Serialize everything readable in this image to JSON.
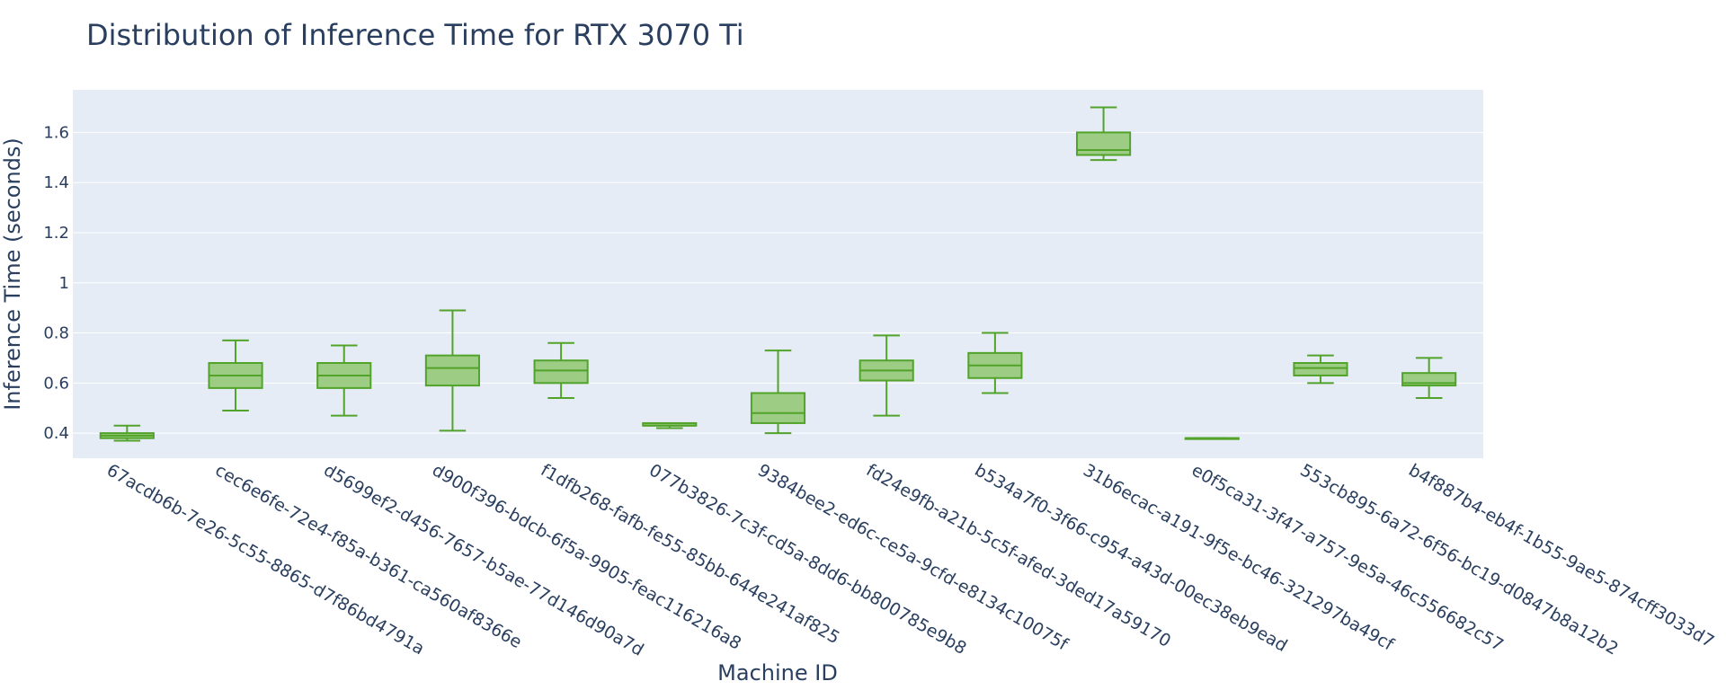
{
  "chart_data": {
    "type": "box",
    "title": "Distribution of Inference Time for RTX 3070 Ti",
    "xlabel": "Machine ID",
    "ylabel": "Inference Time (seconds)",
    "ylim": [
      0.3,
      1.77
    ],
    "yticks": [
      0.4,
      0.6,
      0.8,
      1,
      1.2,
      1.4,
      1.6
    ],
    "grid": true,
    "colors": {
      "plot_bg": "#e5ecf6",
      "grid": "#ffffff",
      "box_fill": "#9dcc85",
      "box_line": "#52a32a",
      "text": "#2a3f5f"
    },
    "categories": [
      "67acdb6b-7e26-5c55-8865-d7f86bd4791a",
      "cec6e6fe-72e4-f85a-b361-ca560af8366e",
      "d5699ef2-d456-7657-b5ae-77d146d90a7d",
      "d900f396-bdcb-6f5a-9905-feac116216a8",
      "f1dfb268-fafb-fe55-85bb-644e241af825",
      "077b3826-7c3f-cd5a-8dd6-bb800785e9b8",
      "9384bee2-ed6c-ce5a-9cfd-e8134c10075f",
      "fd24e9fb-a21b-5c5f-afed-3ded17a59170",
      "b534a7f0-3f66-c954-a43d-00ec38eb9ead",
      "31b6ecac-a191-9f5e-bc46-321297ba49cf",
      "e0f5ca31-3f47-a757-9e5a-46c556682c57",
      "553cb895-6a72-6f56-bc19-d0847b8a12b2",
      "b4f887b4-eb4f-1b55-9ae5-874cff3033d7"
    ],
    "boxes": [
      {
        "min": 0.37,
        "q1": 0.38,
        "median": 0.39,
        "q3": 0.4,
        "max": 0.43
      },
      {
        "min": 0.49,
        "q1": 0.58,
        "median": 0.63,
        "q3": 0.68,
        "max": 0.77
      },
      {
        "min": 0.47,
        "q1": 0.58,
        "median": 0.63,
        "q3": 0.68,
        "max": 0.75
      },
      {
        "min": 0.41,
        "q1": 0.59,
        "median": 0.66,
        "q3": 0.71,
        "max": 0.89
      },
      {
        "min": 0.54,
        "q1": 0.6,
        "median": 0.65,
        "q3": 0.69,
        "max": 0.76
      },
      {
        "min": 0.42,
        "q1": 0.43,
        "median": 0.43,
        "q3": 0.44,
        "max": 0.44
      },
      {
        "min": 0.4,
        "q1": 0.44,
        "median": 0.48,
        "q3": 0.56,
        "max": 0.73
      },
      {
        "min": 0.47,
        "q1": 0.61,
        "median": 0.65,
        "q3": 0.69,
        "max": 0.79
      },
      {
        "min": 0.56,
        "q1": 0.62,
        "median": 0.67,
        "q3": 0.72,
        "max": 0.8
      },
      {
        "min": 1.49,
        "q1": 1.51,
        "median": 1.53,
        "q3": 1.6,
        "max": 1.7
      },
      {
        "min": 0.38,
        "q1": 0.38,
        "median": 0.38,
        "q3": 0.38,
        "max": 0.38
      },
      {
        "min": 0.6,
        "q1": 0.63,
        "median": 0.66,
        "q3": 0.68,
        "max": 0.71
      },
      {
        "min": 0.54,
        "q1": 0.59,
        "median": 0.6,
        "q3": 0.64,
        "max": 0.7
      }
    ]
  }
}
